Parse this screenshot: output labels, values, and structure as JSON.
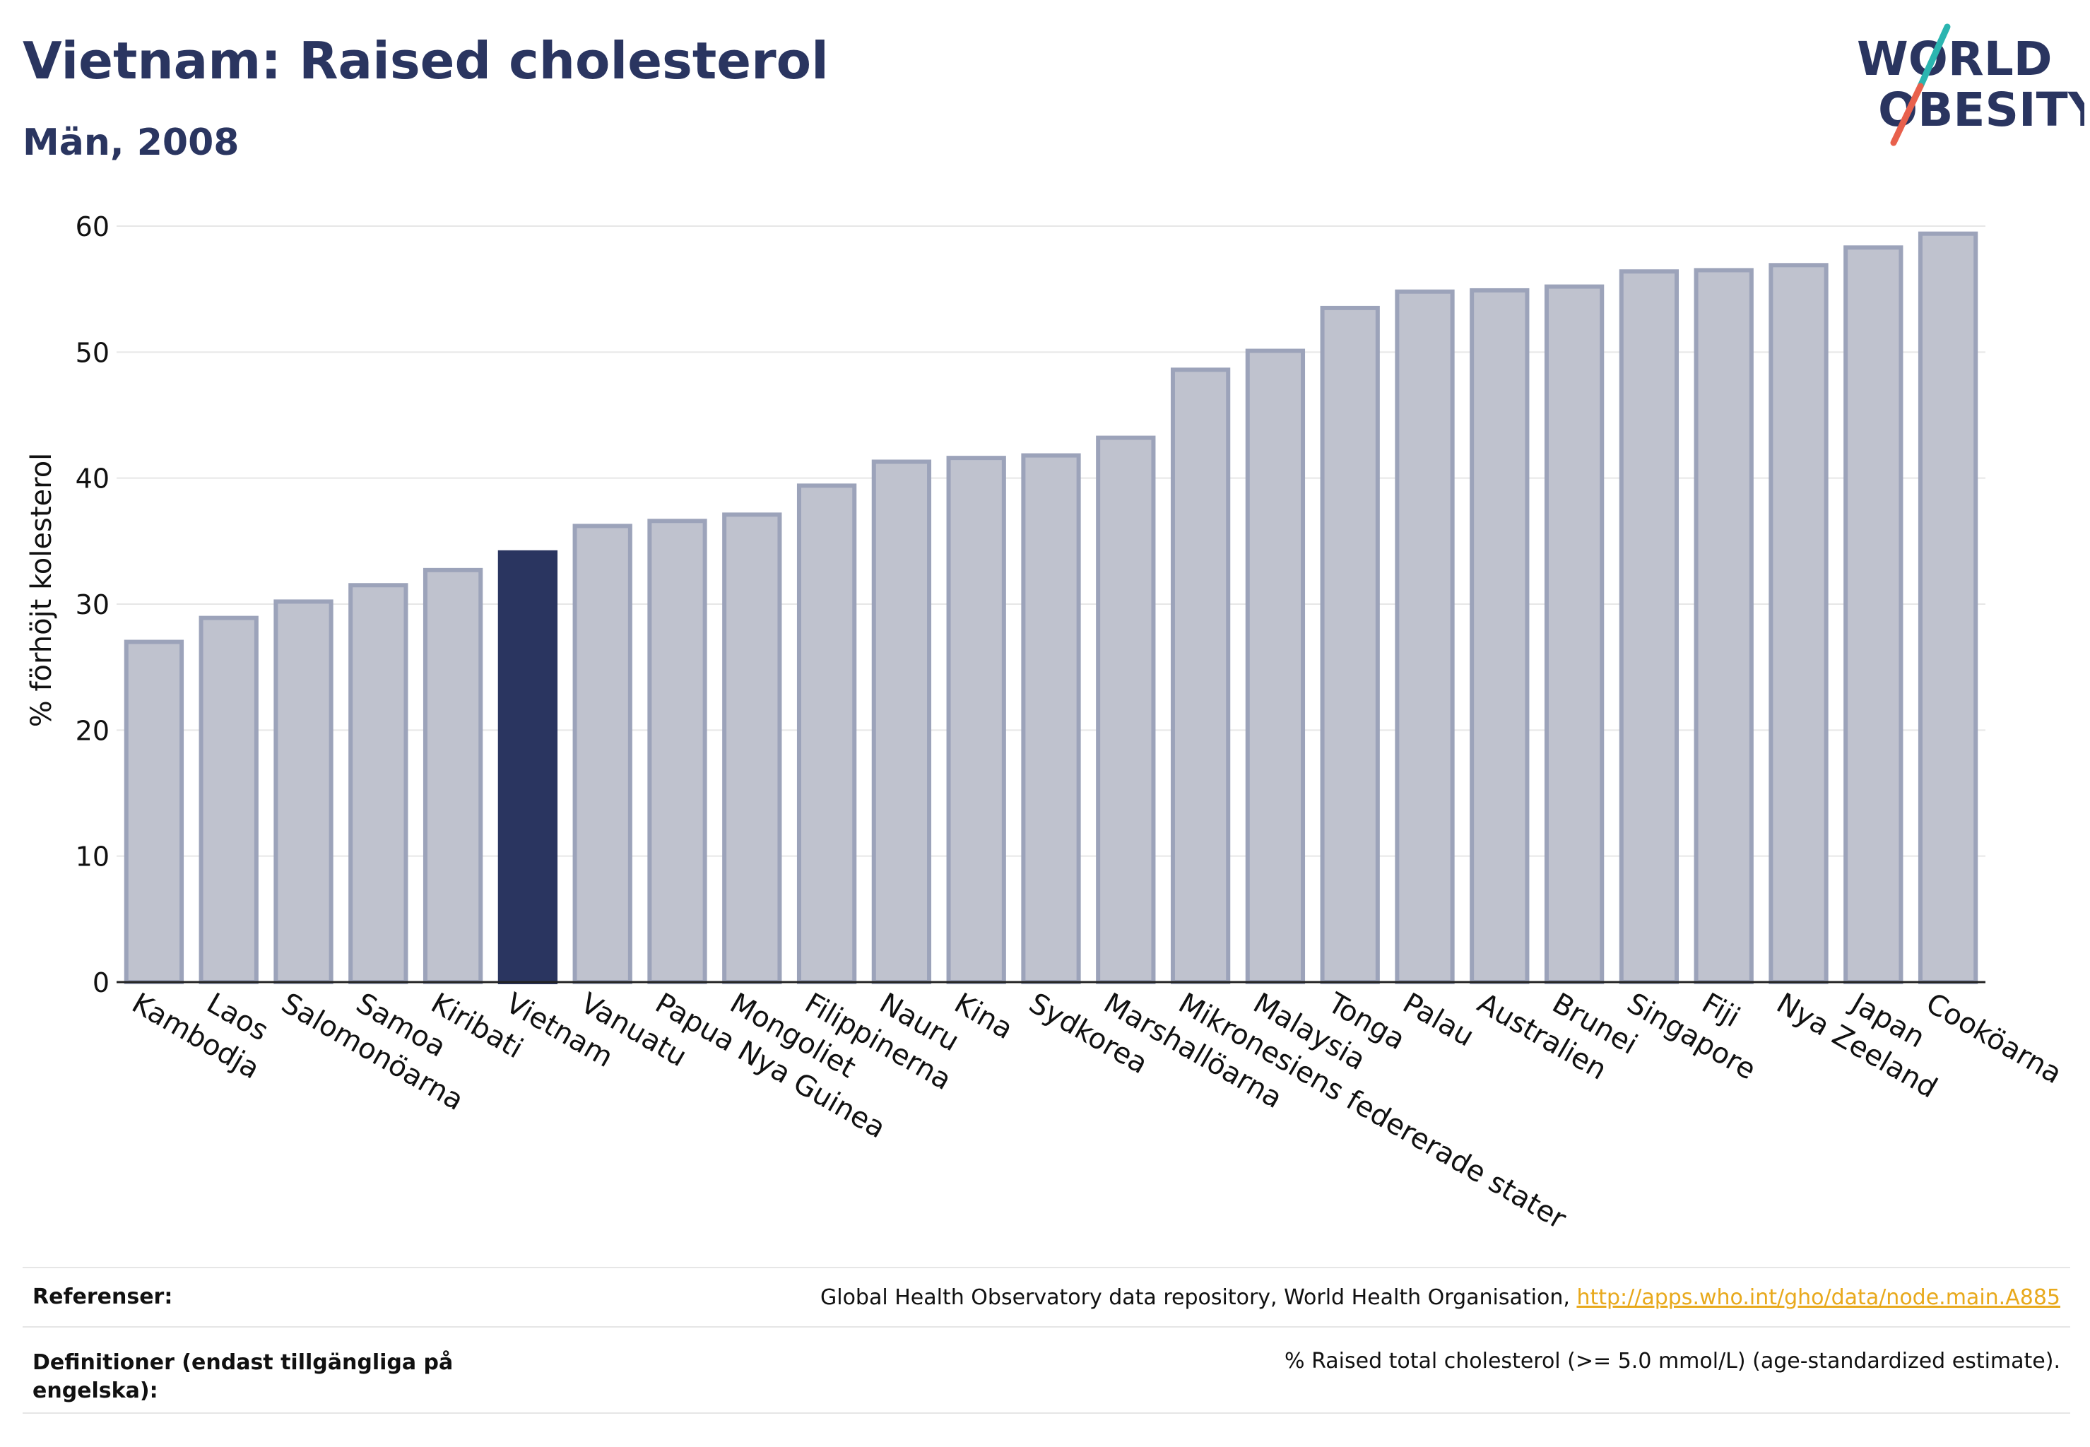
{
  "title": "Vietnam: Raised cholesterol",
  "subtitle": "Män, 2008",
  "logo": {
    "line1": "WORLD",
    "line2": "OBESITY"
  },
  "references": {
    "label": "Referenser:",
    "text": "Global Health Observatory data repository, World Health Organisation,",
    "link": "http://apps.who.int/gho/data/node.main.A885"
  },
  "definitions": {
    "label": "Definitioner (endast tillgängliga på engelska):",
    "text": "% Raised total cholesterol (>= 5.0 mmol/L) (age-standardized estimate)."
  },
  "colors": {
    "highlight": "#2a3560",
    "bar_fill": "#bfc2ce",
    "bar_stroke": "#9ca3ba",
    "link": "#e8a91c",
    "logo_teal": "#2bb5b0",
    "logo_red": "#e8604c"
  },
  "chart_data": {
    "type": "bar",
    "ylabel": "% förhöjt kolesterol",
    "ylim": [
      0,
      60
    ],
    "yticks": [
      0,
      10,
      20,
      30,
      40,
      50,
      60
    ],
    "grid": true,
    "highlight": "Vietnam",
    "categories": [
      "Kambodja",
      "Laos",
      "Salomonöarna",
      "Samoa",
      "Kiribati",
      "Vietnam",
      "Vanuatu",
      "Papua Nya Guinea",
      "Mongoliet",
      "Filippinerna",
      "Nauru",
      "Kina",
      "Sydkorea",
      "Marshallöarna",
      "Mikronesiens federerade stater",
      "Malaysia",
      "Tonga",
      "Palau",
      "Australien",
      "Brunei",
      "Singapore",
      "Fiji",
      "Nya Zeeland",
      "Japan",
      "Cooköarna"
    ],
    "values": [
      27.0,
      28.9,
      30.2,
      31.5,
      32.7,
      34.1,
      36.2,
      36.6,
      37.1,
      39.4,
      41.3,
      41.6,
      41.8,
      43.2,
      48.6,
      50.1,
      53.5,
      54.8,
      54.9,
      55.2,
      56.4,
      56.5,
      56.9,
      58.3,
      59.4
    ]
  }
}
